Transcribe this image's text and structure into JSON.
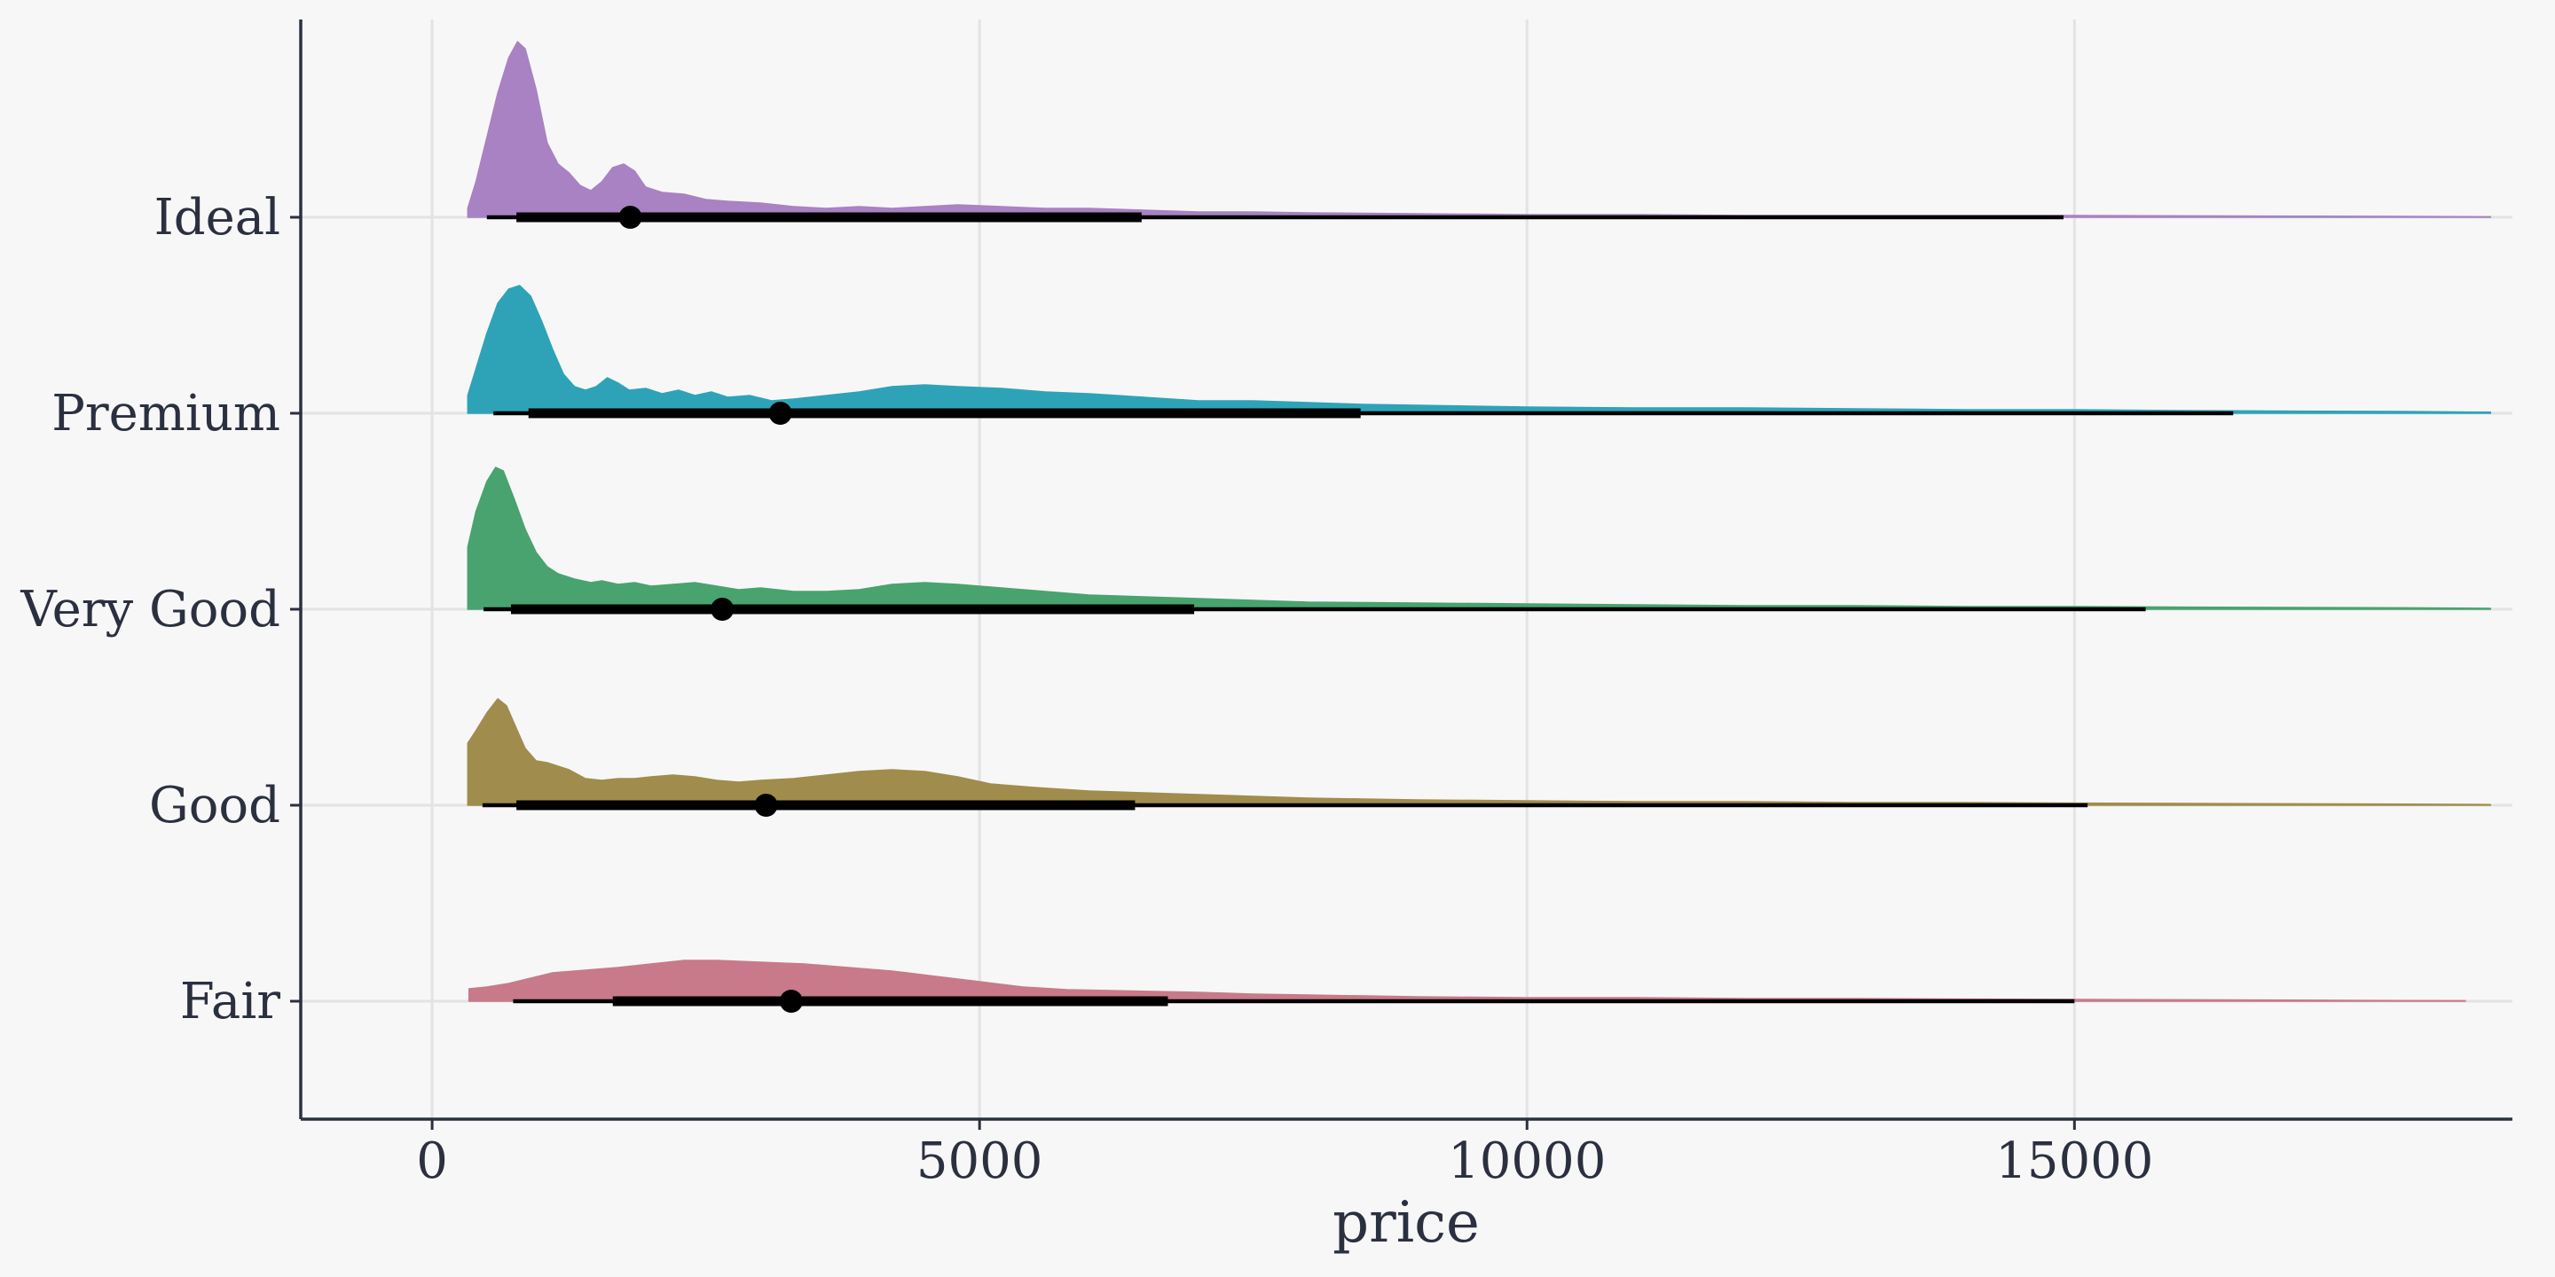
{
  "chart_data": {
    "type": "area",
    "subtype": "halfeye-density",
    "title": "",
    "xlabel": "price",
    "ylabel": "",
    "xlim": [
      -1200,
      19000
    ],
    "x_ticks": [
      0,
      5000,
      10000,
      15000
    ],
    "x_tick_labels": [
      "0",
      "5000",
      "10000",
      "15000"
    ],
    "grid": true,
    "legend": "none",
    "categories": [
      "Fair",
      "Good",
      "Very Good",
      "Premium",
      "Ideal"
    ],
    "series": [
      {
        "name": "Ideal",
        "color": "#a882c2",
        "density": [
          [
            326,
            0.05
          ],
          [
            400,
            0.2
          ],
          [
            500,
            0.45
          ],
          [
            600,
            0.7
          ],
          [
            700,
            0.9
          ],
          [
            780,
            0.99
          ],
          [
            850,
            0.95
          ],
          [
            950,
            0.72
          ],
          [
            1050,
            0.42
          ],
          [
            1150,
            0.3
          ],
          [
            1250,
            0.25
          ],
          [
            1350,
            0.18
          ],
          [
            1450,
            0.15
          ],
          [
            1550,
            0.2
          ],
          [
            1650,
            0.28
          ],
          [
            1750,
            0.3
          ],
          [
            1850,
            0.26
          ],
          [
            1950,
            0.17
          ],
          [
            2100,
            0.14
          ],
          [
            2300,
            0.13
          ],
          [
            2500,
            0.1
          ],
          [
            2700,
            0.09
          ],
          [
            3000,
            0.08
          ],
          [
            3300,
            0.06
          ],
          [
            3600,
            0.05
          ],
          [
            3900,
            0.06
          ],
          [
            4200,
            0.05
          ],
          [
            4500,
            0.06
          ],
          [
            4800,
            0.07
          ],
          [
            5200,
            0.06
          ],
          [
            5600,
            0.05
          ],
          [
            6000,
            0.05
          ],
          [
            6500,
            0.04
          ],
          [
            7000,
            0.03
          ],
          [
            7500,
            0.03
          ],
          [
            8000,
            0.025
          ],
          [
            9000,
            0.02
          ],
          [
            10000,
            0.015
          ],
          [
            11000,
            0.015
          ],
          [
            12000,
            0.01
          ],
          [
            13000,
            0.01
          ],
          [
            14000,
            0.01
          ],
          [
            15000,
            0.01
          ],
          [
            16000,
            0.008
          ],
          [
            17000,
            0.006
          ],
          [
            18000,
            0.005
          ],
          [
            18800,
            0.003
          ]
        ],
        "median": 1810,
        "interval_66": [
          770,
          6480
        ],
        "interval_95": [
          500,
          14900
        ]
      },
      {
        "name": "Premium",
        "color": "#2ea3b8",
        "density": [
          [
            326,
            0.1
          ],
          [
            400,
            0.25
          ],
          [
            500,
            0.45
          ],
          [
            600,
            0.62
          ],
          [
            700,
            0.7
          ],
          [
            800,
            0.72
          ],
          [
            900,
            0.66
          ],
          [
            1000,
            0.52
          ],
          [
            1100,
            0.36
          ],
          [
            1200,
            0.22
          ],
          [
            1300,
            0.15
          ],
          [
            1400,
            0.13
          ],
          [
            1500,
            0.15
          ],
          [
            1600,
            0.2
          ],
          [
            1700,
            0.17
          ],
          [
            1800,
            0.13
          ],
          [
            1950,
            0.14
          ],
          [
            2100,
            0.11
          ],
          [
            2250,
            0.13
          ],
          [
            2400,
            0.1
          ],
          [
            2550,
            0.12
          ],
          [
            2700,
            0.09
          ],
          [
            2900,
            0.1
          ],
          [
            3100,
            0.07
          ],
          [
            3300,
            0.08
          ],
          [
            3600,
            0.1
          ],
          [
            3900,
            0.12
          ],
          [
            4200,
            0.15
          ],
          [
            4500,
            0.16
          ],
          [
            4800,
            0.15
          ],
          [
            5200,
            0.14
          ],
          [
            5600,
            0.12
          ],
          [
            6000,
            0.11
          ],
          [
            6500,
            0.09
          ],
          [
            7000,
            0.07
          ],
          [
            7500,
            0.07
          ],
          [
            8000,
            0.06
          ],
          [
            8500,
            0.05
          ],
          [
            9000,
            0.045
          ],
          [
            10000,
            0.035
          ],
          [
            11000,
            0.03
          ],
          [
            12000,
            0.03
          ],
          [
            13000,
            0.025
          ],
          [
            14000,
            0.02
          ],
          [
            15000,
            0.02
          ],
          [
            16000,
            0.015
          ],
          [
            17000,
            0.012
          ],
          [
            18000,
            0.01
          ],
          [
            18800,
            0.006
          ]
        ],
        "median": 3180,
        "interval_66": [
          880,
          8480
        ],
        "interval_95": [
          560,
          16450
        ]
      },
      {
        "name": "Very Good",
        "color": "#49a36f",
        "density": [
          [
            326,
            0.35
          ],
          [
            400,
            0.55
          ],
          [
            500,
            0.72
          ],
          [
            580,
            0.8
          ],
          [
            650,
            0.78
          ],
          [
            750,
            0.62
          ],
          [
            850,
            0.45
          ],
          [
            950,
            0.32
          ],
          [
            1050,
            0.24
          ],
          [
            1150,
            0.2
          ],
          [
            1300,
            0.17
          ],
          [
            1450,
            0.15
          ],
          [
            1550,
            0.16
          ],
          [
            1700,
            0.14
          ],
          [
            1850,
            0.15
          ],
          [
            2000,
            0.13
          ],
          [
            2200,
            0.14
          ],
          [
            2400,
            0.15
          ],
          [
            2600,
            0.13
          ],
          [
            2800,
            0.11
          ],
          [
            3000,
            0.12
          ],
          [
            3300,
            0.1
          ],
          [
            3600,
            0.1
          ],
          [
            3900,
            0.11
          ],
          [
            4200,
            0.14
          ],
          [
            4500,
            0.15
          ],
          [
            4800,
            0.14
          ],
          [
            5200,
            0.12
          ],
          [
            5600,
            0.1
          ],
          [
            6000,
            0.08
          ],
          [
            6500,
            0.07
          ],
          [
            7000,
            0.06
          ],
          [
            7500,
            0.05
          ],
          [
            8000,
            0.04
          ],
          [
            9000,
            0.035
          ],
          [
            10000,
            0.03
          ],
          [
            11000,
            0.025
          ],
          [
            12000,
            0.02
          ],
          [
            13000,
            0.02
          ],
          [
            14000,
            0.015
          ],
          [
            15000,
            0.015
          ],
          [
            16000,
            0.012
          ],
          [
            17000,
            0.01
          ],
          [
            18000,
            0.008
          ],
          [
            18800,
            0.005
          ]
        ],
        "median": 2650,
        "interval_66": [
          720,
          6960
        ],
        "interval_95": [
          470,
          15650
        ]
      },
      {
        "name": "Good",
        "color": "#a08c4c",
        "density": [
          [
            326,
            0.35
          ],
          [
            400,
            0.42
          ],
          [
            500,
            0.52
          ],
          [
            600,
            0.6
          ],
          [
            680,
            0.56
          ],
          [
            750,
            0.46
          ],
          [
            850,
            0.32
          ],
          [
            950,
            0.25
          ],
          [
            1050,
            0.24
          ],
          [
            1150,
            0.22
          ],
          [
            1250,
            0.2
          ],
          [
            1400,
            0.15
          ],
          [
            1550,
            0.14
          ],
          [
            1700,
            0.15
          ],
          [
            1850,
            0.15
          ],
          [
            2000,
            0.16
          ],
          [
            2200,
            0.17
          ],
          [
            2400,
            0.16
          ],
          [
            2600,
            0.14
          ],
          [
            2800,
            0.13
          ],
          [
            3000,
            0.14
          ],
          [
            3300,
            0.15
          ],
          [
            3600,
            0.17
          ],
          [
            3900,
            0.19
          ],
          [
            4200,
            0.2
          ],
          [
            4500,
            0.19
          ],
          [
            4800,
            0.16
          ],
          [
            5100,
            0.12
          ],
          [
            5500,
            0.1
          ],
          [
            6000,
            0.08
          ],
          [
            6500,
            0.07
          ],
          [
            7000,
            0.06
          ],
          [
            7500,
            0.05
          ],
          [
            8000,
            0.04
          ],
          [
            8500,
            0.035
          ],
          [
            9000,
            0.03
          ],
          [
            10000,
            0.025
          ],
          [
            11000,
            0.02
          ],
          [
            12000,
            0.02
          ],
          [
            13000,
            0.015
          ],
          [
            14000,
            0.015
          ],
          [
            15000,
            0.012
          ],
          [
            16000,
            0.01
          ],
          [
            17000,
            0.008
          ],
          [
            18000,
            0.006
          ],
          [
            18800,
            0.004
          ]
        ],
        "median": 3050,
        "interval_66": [
          770,
          6420
        ],
        "interval_95": [
          460,
          15120
        ]
      },
      {
        "name": "Fair",
        "color": "#c87a8a",
        "density": [
          [
            337,
            0.07
          ],
          [
            500,
            0.08
          ],
          [
            700,
            0.1
          ],
          [
            900,
            0.13
          ],
          [
            1100,
            0.16
          ],
          [
            1300,
            0.17
          ],
          [
            1500,
            0.18
          ],
          [
            1700,
            0.19
          ],
          [
            2000,
            0.21
          ],
          [
            2300,
            0.23
          ],
          [
            2600,
            0.23
          ],
          [
            3000,
            0.22
          ],
          [
            3400,
            0.21
          ],
          [
            3800,
            0.19
          ],
          [
            4200,
            0.17
          ],
          [
            4600,
            0.14
          ],
          [
            5000,
            0.11
          ],
          [
            5400,
            0.08
          ],
          [
            5800,
            0.065
          ],
          [
            6200,
            0.06
          ],
          [
            6600,
            0.055
          ],
          [
            7000,
            0.05
          ],
          [
            7500,
            0.04
          ],
          [
            8000,
            0.035
          ],
          [
            9000,
            0.025
          ],
          [
            10000,
            0.02
          ],
          [
            11000,
            0.02
          ],
          [
            12000,
            0.015
          ],
          [
            13000,
            0.015
          ],
          [
            14000,
            0.012
          ],
          [
            15000,
            0.01
          ],
          [
            16000,
            0.008
          ],
          [
            17000,
            0.006
          ],
          [
            18000,
            0.004
          ],
          [
            18570,
            0.003
          ]
        ],
        "median": 3280,
        "interval_66": [
          1650,
          6720
        ],
        "interval_95": [
          740,
          15000
        ]
      }
    ]
  }
}
